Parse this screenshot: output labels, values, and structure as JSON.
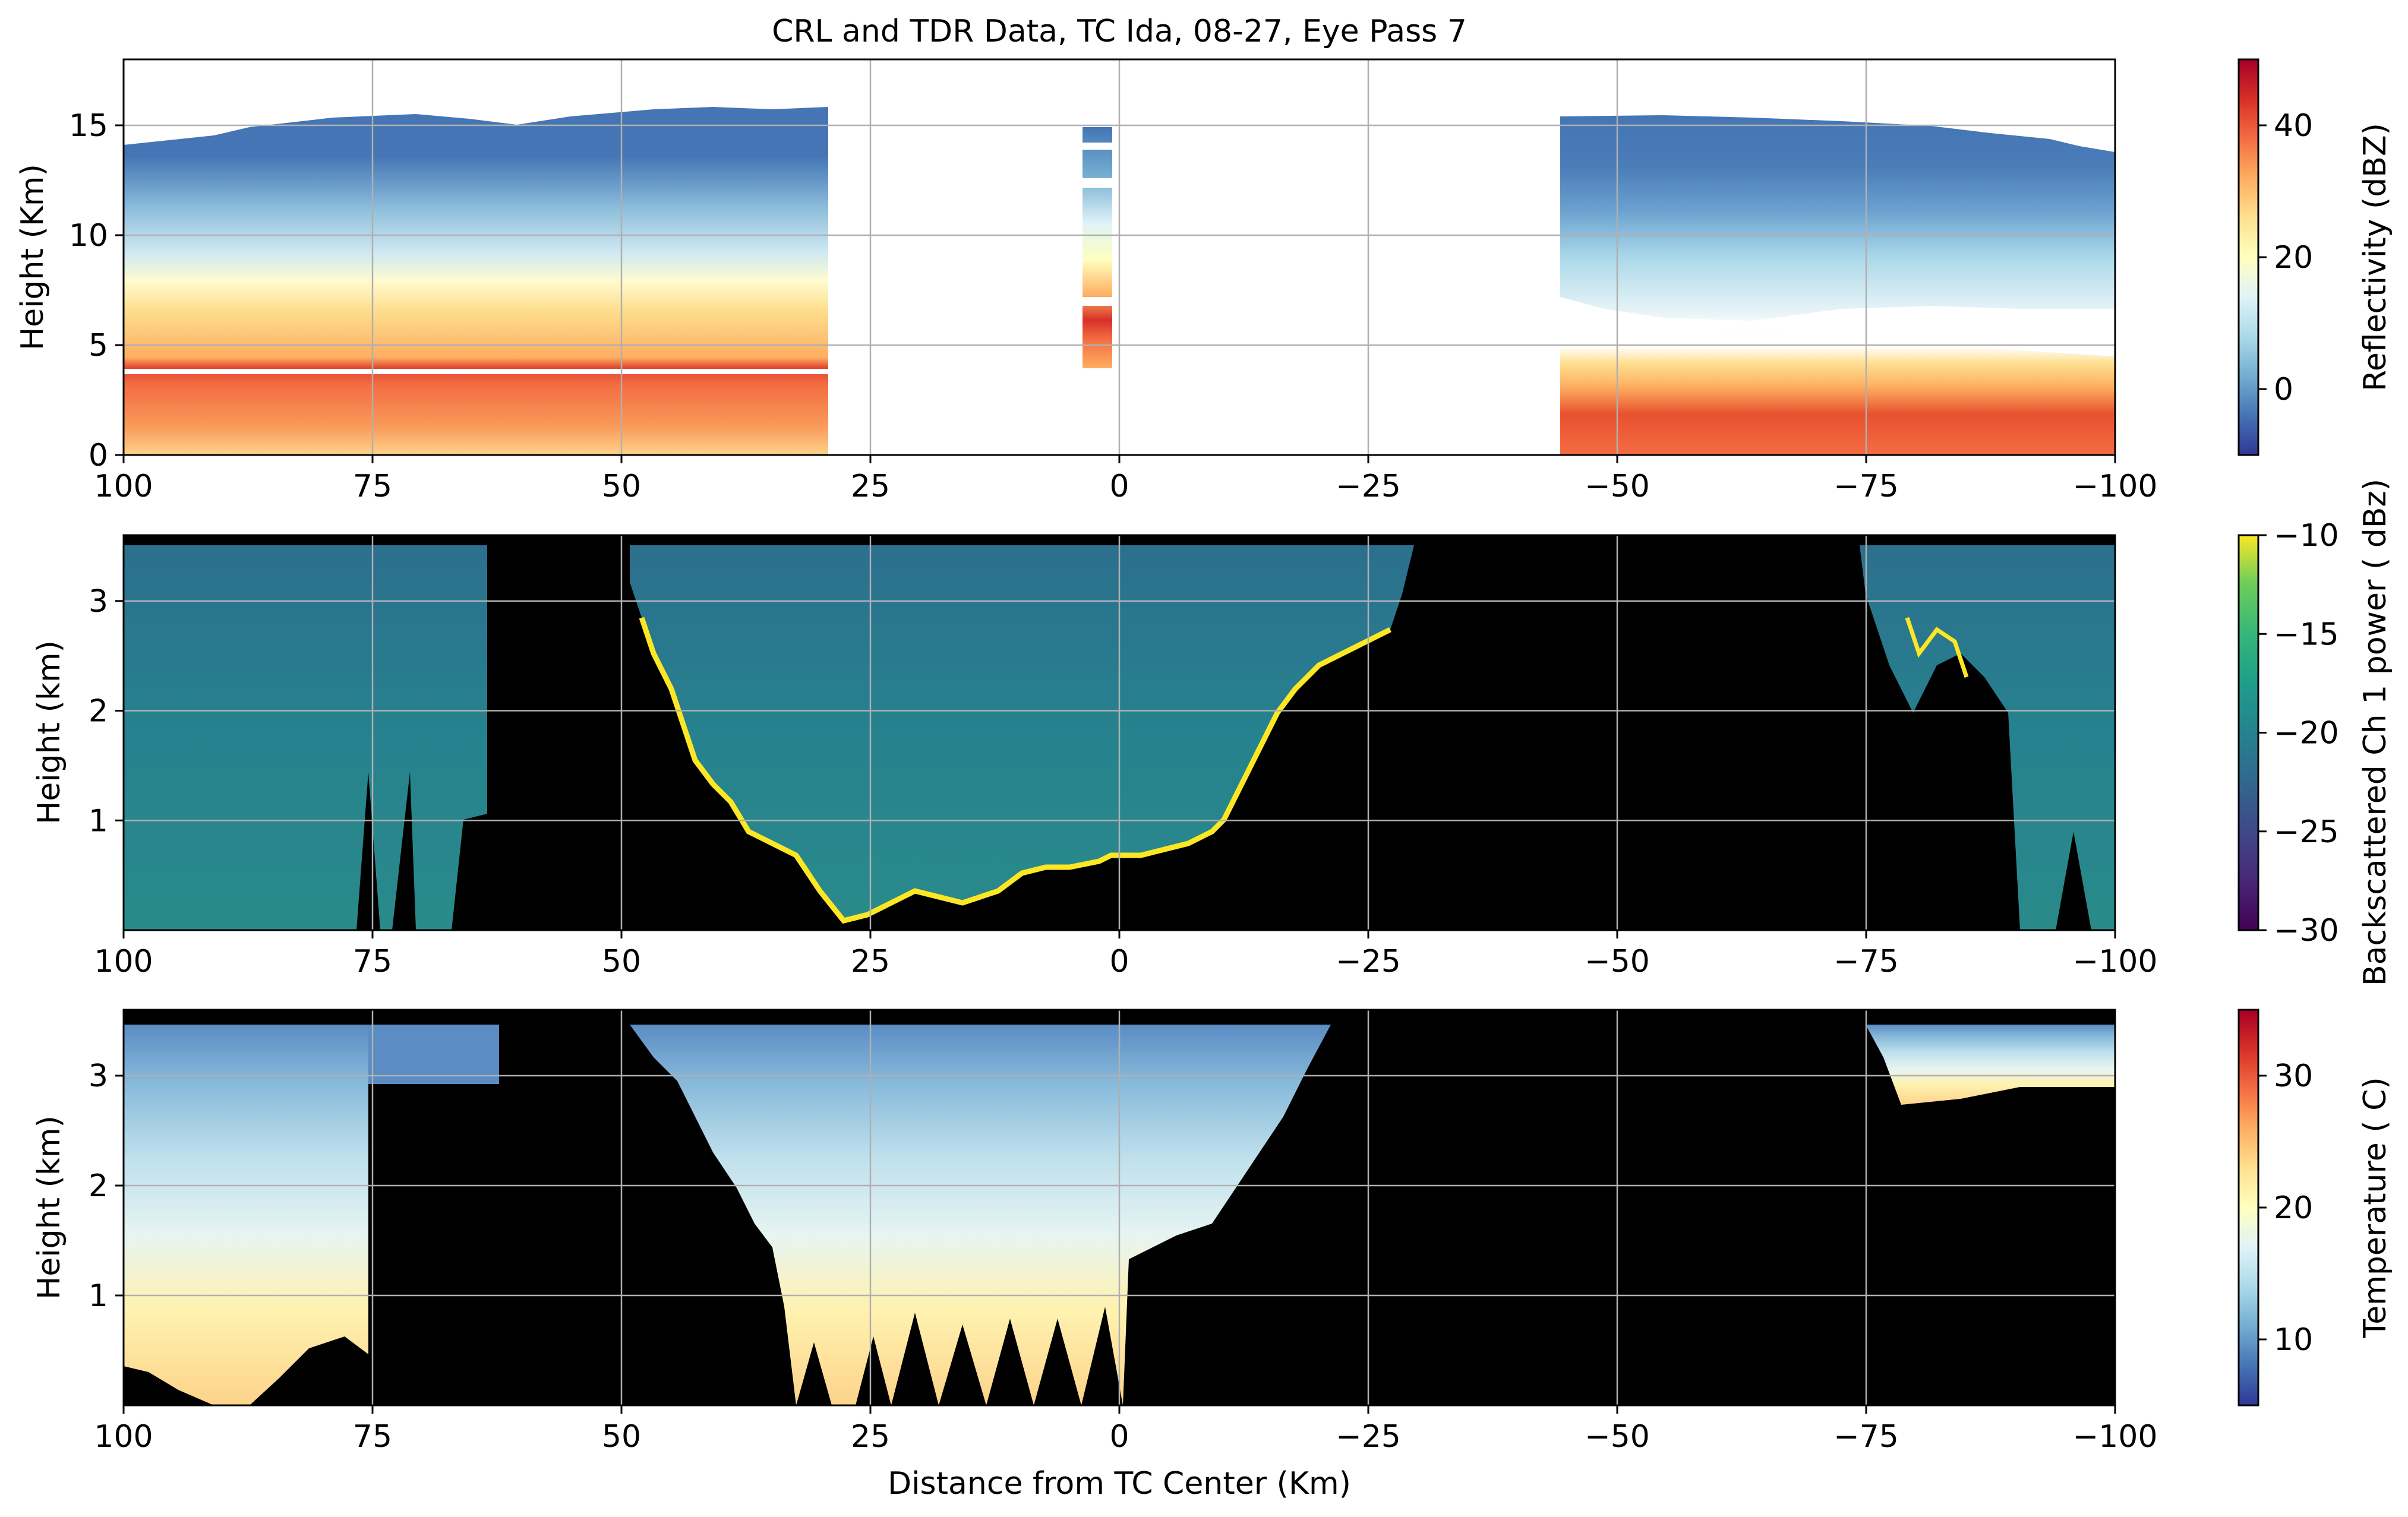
{
  "chart_data": [
    {
      "type": "heatmap",
      "title": "CRL and TDR Data, TC Ida, 08-27, Eye Pass 7",
      "xlabel": "",
      "ylabel": "Height (Km)",
      "xlim": [
        100,
        -100
      ],
      "ylim": [
        0,
        18
      ],
      "x_ticks": [
        100,
        75,
        50,
        25,
        0,
        -25,
        -50,
        -75,
        -100
      ],
      "y_ticks": [
        0,
        5,
        10,
        15
      ],
      "grid": true,
      "colormap": "RdYlBu_r",
      "colorbar": {
        "label": "Reflectivity (dBZ)",
        "range": [
          -10,
          50
        ],
        "ticks": [
          0,
          20,
          40
        ]
      },
      "data_segments": [
        {
          "x_range": [
            100,
            30
          ],
          "top_height_km": 15.5,
          "description_values": {
            "0-2 km": 35,
            "2-4 km": 40,
            "4.5 km": 45,
            "5-9 km": 25,
            "9-14 km": 5
          }
        },
        {
          "x_range": [
            3.5,
            0.5
          ],
          "top_height_km": 15
        },
        {
          "x_range": [
            -44,
            -100
          ],
          "top_height_km": 15.5
        }
      ]
    },
    {
      "type": "heatmap",
      "title": "",
      "xlabel": "",
      "ylabel": "Height (km)",
      "xlim": [
        100,
        -100
      ],
      "ylim": [
        0,
        3.6
      ],
      "x_ticks": [
        100,
        75,
        50,
        25,
        0,
        -25,
        -50,
        -75,
        -100
      ],
      "y_ticks": [
        1,
        2,
        3
      ],
      "grid": true,
      "colormap": "viridis",
      "colorbar": {
        "label": "Backscattered Ch 1 power ( dBz)",
        "range": [
          -30,
          -10
        ],
        "ticks": [
          -10,
          -15,
          -20,
          -25,
          -30
        ]
      }
    },
    {
      "type": "heatmap",
      "title": "",
      "xlabel": "Distance from TC Center (Km)",
      "ylabel": "Height (km)",
      "xlim": [
        100,
        -100
      ],
      "ylim": [
        0,
        3.6
      ],
      "x_ticks": [
        100,
        75,
        50,
        25,
        0,
        -25,
        -50,
        -75,
        -100
      ],
      "y_ticks": [
        1,
        2,
        3
      ],
      "grid": true,
      "colormap": "RdYlBu_r",
      "colorbar": {
        "label": "Temperature ( C)",
        "range": [
          5,
          35
        ],
        "ticks": [
          10,
          20,
          30
        ]
      }
    }
  ],
  "tick_text": {
    "x": [
      "100",
      "75",
      "50",
      "25",
      "0",
      "−25",
      "−50",
      "−75",
      "−100"
    ],
    "p1_y": [
      "0",
      "5",
      "10",
      "15"
    ],
    "p23_y": [
      "1",
      "2",
      "3"
    ],
    "cb1": [
      "0",
      "20",
      "40"
    ],
    "cb2": [
      "−10",
      "−15",
      "−20",
      "−25",
      "−30"
    ],
    "cb3": [
      "10",
      "20",
      "30"
    ]
  }
}
